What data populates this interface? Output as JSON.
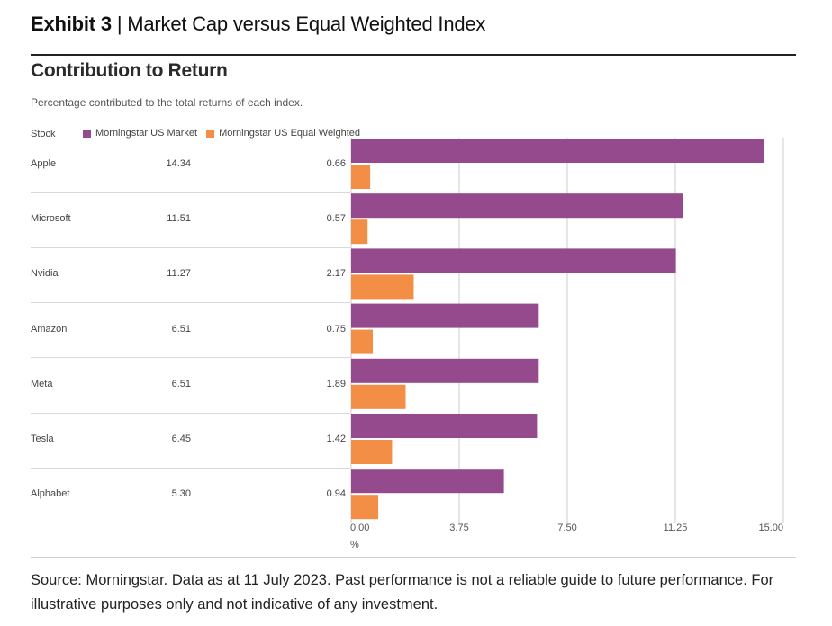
{
  "exhibit": {
    "number": "Exhibit 3",
    "separator": "|",
    "title": "Market Cap versus Equal Weighted Index"
  },
  "chart_data": {
    "type": "bar",
    "orientation": "horizontal",
    "title": "Contribution to Return",
    "subtitle": "Percentage contributed to the total returns of each index.",
    "column_header": "Stock",
    "categories": [
      "Apple",
      "Microsoft",
      "Nvidia",
      "Amazon",
      "Meta",
      "Tesla",
      "Alphabet"
    ],
    "series": [
      {
        "name": "Morningstar US Market",
        "color": "#944a8c",
        "values": [
          14.34,
          11.51,
          11.27,
          6.51,
          6.51,
          6.45,
          5.3
        ]
      },
      {
        "name": "Morningstar US Equal Weighted",
        "color": "#f28e45",
        "values": [
          0.66,
          0.57,
          2.17,
          0.75,
          1.89,
          1.42,
          0.94
        ]
      }
    ],
    "value_labels": {
      "market": [
        "14.34",
        "11.51",
        "11.27",
        "6.51",
        "6.51",
        "6.45",
        "5.30"
      ],
      "equal": [
        "0.66",
        "0.57",
        "2.17",
        "0.75",
        "1.89",
        "1.42",
        "0.94"
      ]
    },
    "xlim": [
      0,
      15
    ],
    "xticks": [
      "0.00",
      "3.75",
      "7.50",
      "11.25",
      "15.00"
    ],
    "xlabel": "%",
    "grid": true
  },
  "source": "Source: Morningstar. Data as at 11 July 2023. Past performance is not a reliable guide to future performance. For illustrative purposes only and not indicative of any investment."
}
